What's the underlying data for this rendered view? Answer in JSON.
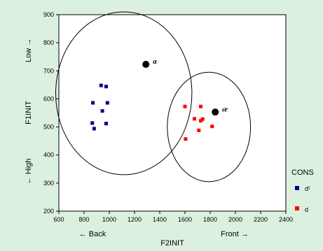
{
  "chart_data": {
    "type": "scatter",
    "title": "",
    "xlabel": "F2INIT",
    "ylabel": "F1INIT",
    "xlim": [
      600,
      2400
    ],
    "ylim": [
      200,
      900
    ],
    "xticks": [
      600,
      800,
      1000,
      1200,
      1400,
      1600,
      1800,
      2000,
      2200,
      2400
    ],
    "yticks": [
      200,
      300,
      400,
      500,
      600,
      700,
      800,
      900
    ],
    "x_direction_labels": {
      "left": "← Back",
      "right": "Front →"
    },
    "y_direction_labels": {
      "top": "Low →",
      "bottom": "← High"
    },
    "legend": {
      "title": "CONS",
      "position": "right",
      "entries": [
        {
          "label": "dˤ",
          "color": "#00008b",
          "marker": "square"
        },
        {
          "label": "d",
          "color": "#ff0000",
          "marker": "square"
        }
      ]
    },
    "series": [
      {
        "name": "dˤ",
        "color": "#00008b",
        "marker": "square",
        "points": [
          [
            935,
            648
          ],
          [
            975,
            644
          ],
          [
            870,
            586
          ],
          [
            985,
            586
          ],
          [
            945,
            557
          ],
          [
            865,
            514
          ],
          [
            975,
            512
          ],
          [
            880,
            494
          ]
        ]
      },
      {
        "name": "d",
        "color": "#ff0000",
        "marker": "square",
        "points": [
          [
            1600,
            573
          ],
          [
            1725,
            573
          ],
          [
            1675,
            529
          ],
          [
            1725,
            522
          ],
          [
            1740,
            528
          ],
          [
            1815,
            502
          ],
          [
            1710,
            488
          ],
          [
            1605,
            457
          ]
        ]
      }
    ],
    "annotations": [
      {
        "text": "ɑ",
        "x": 1290,
        "y": 723,
        "marker": "dot",
        "color": "#000000"
      },
      {
        "text": "æ",
        "x": 1840,
        "y": 553,
        "marker": "dot",
        "color": "#000000"
      }
    ],
    "ellipses": [
      {
        "cx": 1115,
        "cy": 620,
        "rx": 540,
        "ry": 290
      },
      {
        "cx": 1790,
        "cy": 500,
        "rx": 330,
        "ry": 195
      }
    ],
    "grid": false
  }
}
